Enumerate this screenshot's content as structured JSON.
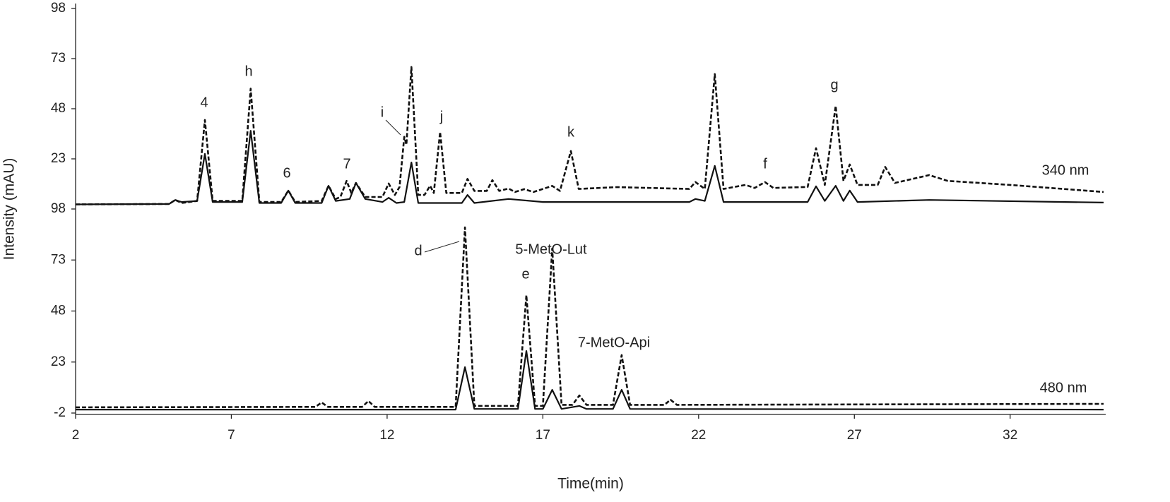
{
  "chart_data": [
    {
      "type": "line",
      "ylabel": "Intensity (mAU)",
      "xlim": [
        2,
        35
      ],
      "ylim": [
        -2,
        98
      ],
      "yticks": [
        23,
        48,
        73,
        98
      ],
      "annotations": [
        "4",
        "h",
        "6",
        "7",
        "i",
        "j",
        "k",
        "f",
        "g",
        "340 nm"
      ],
      "series": [
        {
          "color": "#111111",
          "dashed": true,
          "x": [
            2,
            5.0,
            5.2,
            5.4,
            5.9,
            6.15,
            6.4,
            7.35,
            7.62,
            7.9,
            8.6,
            8.83,
            9.05,
            9.9,
            10.12,
            10.35,
            10.5,
            10.7,
            10.85,
            11.0,
            11.3,
            11.85,
            12.05,
            12.25,
            12.4,
            12.55,
            12.62,
            12.78,
            13.0,
            13.2,
            13.38,
            13.5,
            13.7,
            13.9,
            14.4,
            14.58,
            14.8,
            15.2,
            15.38,
            15.6,
            15.9,
            16.1,
            16.4,
            16.7,
            17.3,
            17.55,
            17.9,
            18.15,
            19.37,
            21.7,
            21.9,
            22.2,
            22.52,
            22.8,
            23.5,
            23.8,
            24.13,
            24.4,
            25.5,
            25.77,
            26.05,
            26.4,
            26.65,
            26.85,
            27.1,
            27.75,
            27.99,
            28.3,
            29.4,
            30,
            32,
            35
          ],
          "values": [
            0.3,
            0.5,
            2.5,
            1,
            2,
            42.4,
            2,
            2,
            58,
            1.5,
            1.5,
            7.2,
            1.5,
            2,
            9.6,
            3,
            4,
            12,
            6,
            11,
            4,
            4,
            10.7,
            5,
            9,
            34,
            30,
            68.8,
            5,
            5,
            9.6,
            6,
            36.4,
            6,
            6,
            13,
            7,
            7,
            12.4,
            7,
            8.2,
            6.5,
            7.9,
            6.5,
            9.5,
            7,
            26.9,
            8,
            8.9,
            8,
            11.4,
            8,
            65.3,
            8,
            10,
            8.5,
            11.4,
            8.5,
            9,
            28.3,
            10,
            49.4,
            12,
            20.2,
            10,
            10,
            19,
            11,
            14.9,
            12,
            10,
            6.5
          ]
        },
        {
          "color": "#111111",
          "dashed": false,
          "x": [
            2,
            5.0,
            5.2,
            5.4,
            5.9,
            6.15,
            6.4,
            7.35,
            7.62,
            7.9,
            8.6,
            8.83,
            9.05,
            9.9,
            10.12,
            10.35,
            10.8,
            11.0,
            11.3,
            11.85,
            12.05,
            12.3,
            12.55,
            12.78,
            13.0,
            14.4,
            14.58,
            14.8,
            15.9,
            17,
            21.7,
            21.9,
            22.2,
            22.52,
            22.8,
            25.5,
            25.77,
            26.05,
            26.4,
            26.65,
            26.85,
            27.1,
            29.4,
            35
          ],
          "values": [
            0.3,
            0.5,
            2.5,
            1.5,
            2,
            25.5,
            1.5,
            1.5,
            37,
            1,
            1,
            7.2,
            1,
            1,
            9.6,
            2,
            3,
            11,
            3,
            1.5,
            3.6,
            1,
            1.5,
            21.2,
            1,
            1,
            5,
            1,
            3,
            1.5,
            1.5,
            3,
            2,
            19.5,
            1.5,
            1.5,
            9.3,
            2,
            9.6,
            2,
            7.2,
            1.5,
            2.5,
            1.2
          ]
        }
      ]
    },
    {
      "type": "line",
      "xlabel": "Time(min)",
      "xlim": [
        2,
        35
      ],
      "xticks": [
        2,
        7,
        12,
        17,
        22,
        27,
        32
      ],
      "ylim": [
        -2,
        98
      ],
      "yticks": [
        -2,
        23,
        48,
        73,
        98
      ],
      "annotations": [
        "d",
        "5-MetO-Lut",
        "e",
        "7-MetO-Api",
        "480 nm"
      ],
      "series": [
        {
          "color": "#111111",
          "dashed": true,
          "x": [
            2,
            9.7,
            9.9,
            10.1,
            11.2,
            11.4,
            11.6,
            14.2,
            14.5,
            14.8,
            16.2,
            16.47,
            16.75,
            17.0,
            17.3,
            17.6,
            17.95,
            18.17,
            18.4,
            19.25,
            19.53,
            19.8,
            20.9,
            21.1,
            21.3,
            35
          ],
          "values": [
            0.8,
            1,
            3.2,
            1,
            1,
            3.9,
            1,
            1,
            89,
            1.5,
            1.5,
            55.8,
            1.5,
            1.5,
            78.6,
            2,
            2,
            6.6,
            2,
            2,
            26.4,
            2,
            2,
            4.5,
            2,
            2.5
          ]
        },
        {
          "color": "#111111",
          "dashed": false,
          "x": [
            2,
            14.2,
            14.5,
            14.8,
            16.2,
            16.47,
            16.75,
            17.0,
            17.3,
            17.6,
            18.17,
            18.4,
            19.25,
            19.53,
            19.8,
            35
          ],
          "values": [
            -0.3,
            -0.3,
            20.5,
            0,
            0,
            28.4,
            0,
            0,
            9.4,
            0,
            1.5,
            0,
            0,
            9.4,
            0,
            -0.3
          ]
        }
      ]
    }
  ]
}
